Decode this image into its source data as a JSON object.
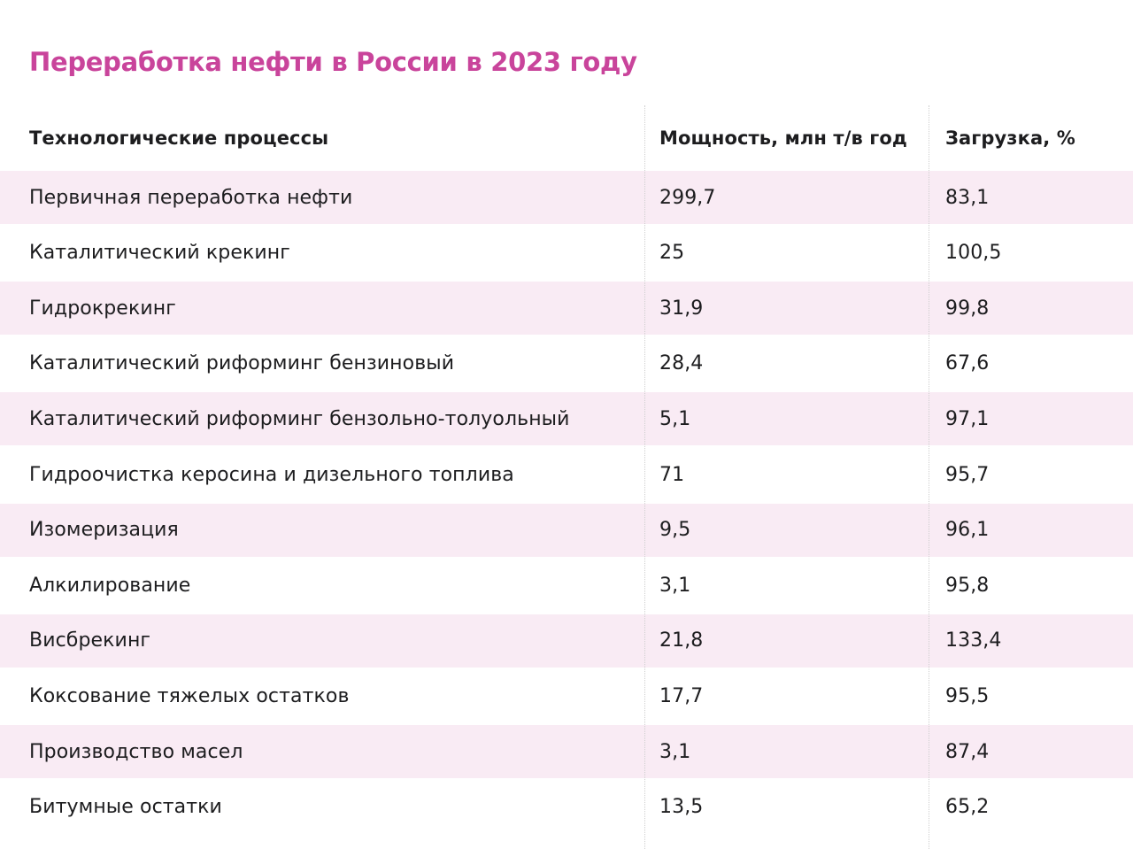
{
  "title": "Переработка нефти в России в 2023 году",
  "table": {
    "headers": {
      "process": "Технологические процессы",
      "capacity": "Мощность, млн т/в год",
      "load": "Загрузка, %"
    },
    "rows": [
      {
        "process": "Первичная переработка нефти",
        "capacity": "299,7",
        "load": "83,1"
      },
      {
        "process": "Каталитический крекинг",
        "capacity": "25",
        "load": "100,5"
      },
      {
        "process": "Гидрокрекинг",
        "capacity": "31,9",
        "load": "99,8"
      },
      {
        "process": "Каталитический риформинг бензиновый",
        "capacity": "28,4",
        "load": "67,6"
      },
      {
        "process": "Каталитический риформинг бензольно-толуольный",
        "capacity": "5,1",
        "load": "97,1"
      },
      {
        "process": "Гидроочистка керосина и дизельного топлива",
        "capacity": "71",
        "load": "95,7"
      },
      {
        "process": "Изомеризация",
        "capacity": "9,5",
        "load": "96,1"
      },
      {
        "process": "Алкилирование",
        "capacity": "3,1",
        "load": "95,8"
      },
      {
        "process": "Висбрекинг",
        "capacity": "21,8",
        "load": "133,4"
      },
      {
        "process": "Коксование тяжелых остатков",
        "capacity": "17,7",
        "load": "95,5"
      },
      {
        "process": "Производство масел",
        "capacity": "3,1",
        "load": "87,4"
      },
      {
        "process": "Битумные остатки",
        "capacity": "13,5",
        "load": "65,2"
      }
    ]
  },
  "colors": {
    "title": "#c9449b",
    "stripe": "#f9ebf4",
    "text": "#1d1d1f"
  }
}
